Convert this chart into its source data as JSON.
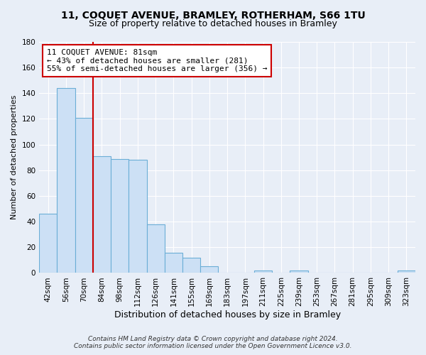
{
  "title": "11, COQUET AVENUE, BRAMLEY, ROTHERHAM, S66 1TU",
  "subtitle": "Size of property relative to detached houses in Bramley",
  "xlabel": "Distribution of detached houses by size in Bramley",
  "ylabel": "Number of detached properties",
  "bar_labels": [
    "42sqm",
    "56sqm",
    "70sqm",
    "84sqm",
    "98sqm",
    "112sqm",
    "126sqm",
    "141sqm",
    "155sqm",
    "169sqm",
    "183sqm",
    "197sqm",
    "211sqm",
    "225sqm",
    "239sqm",
    "253sqm",
    "267sqm",
    "281sqm",
    "295sqm",
    "309sqm",
    "323sqm"
  ],
  "bar_values": [
    46,
    144,
    121,
    91,
    89,
    88,
    38,
    16,
    12,
    5,
    0,
    0,
    2,
    0,
    2,
    0,
    0,
    0,
    0,
    0,
    2
  ],
  "bar_color": "#cce0f5",
  "bar_edge_color": "#6baed6",
  "vline_color": "#cc0000",
  "annotation_title": "11 COQUET AVENUE: 81sqm",
  "annotation_line1": "← 43% of detached houses are smaller (281)",
  "annotation_line2": "55% of semi-detached houses are larger (356) →",
  "annotation_box_facecolor": "white",
  "annotation_box_edgecolor": "#cc0000",
  "ylim": [
    0,
    180
  ],
  "yticks": [
    0,
    20,
    40,
    60,
    80,
    100,
    120,
    140,
    160,
    180
  ],
  "background_color": "#e8eef7",
  "plot_bg_color": "#e8eef7",
  "grid_color": "white",
  "footer1": "Contains HM Land Registry data © Crown copyright and database right 2024.",
  "footer2": "Contains public sector information licensed under the Open Government Licence v3.0.",
  "title_fontsize": 10,
  "subtitle_fontsize": 9,
  "tick_fontsize": 7.5,
  "xlabel_fontsize": 9,
  "ylabel_fontsize": 8,
  "footer_fontsize": 6.5
}
